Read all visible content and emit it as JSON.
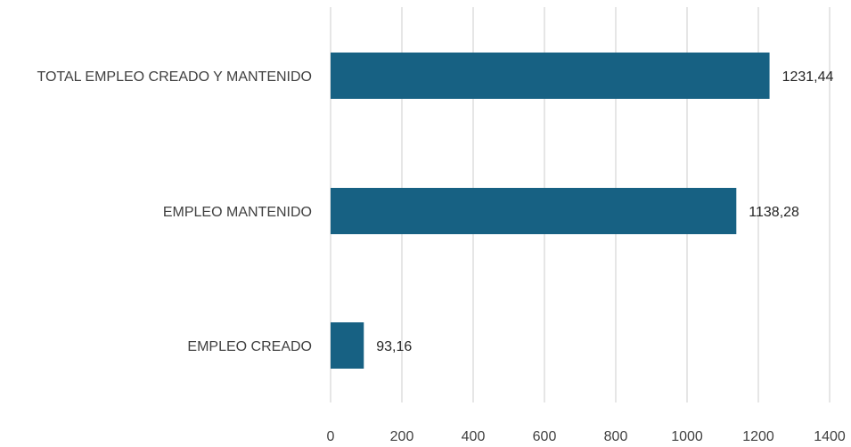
{
  "chart_data": {
    "type": "bar",
    "orientation": "horizontal",
    "categories": [
      "TOTAL EMPLEO CREADO Y MANTENIDO",
      "EMPLEO MANTENIDO",
      "EMPLEO CREADO"
    ],
    "values": [
      1231.44,
      1138.28,
      93.16
    ],
    "data_labels": [
      "1231,44",
      "1138,28",
      "93,16"
    ],
    "xlim": [
      0,
      1400
    ],
    "x_ticks": [
      0,
      200,
      400,
      600,
      800,
      1000,
      1200,
      1400
    ],
    "grid": "vertical",
    "legend": "none",
    "colors": {
      "bar": "#176183",
      "gridline": "#d9d9d9",
      "text": "#404040"
    }
  }
}
